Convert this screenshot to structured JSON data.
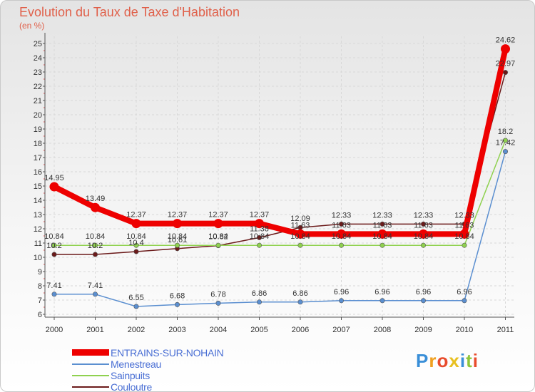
{
  "chart_data": {
    "type": "line",
    "title": "Evolution du Taux de Taxe d'Habitation",
    "ylabel": "(en %)",
    "xlabel": "",
    "ylim": [
      6,
      25
    ],
    "ytick_step": 1,
    "categories": [
      "2000",
      "2001",
      "2002",
      "2003",
      "2004",
      "2005",
      "2006",
      "2007",
      "2008",
      "2009",
      "2010",
      "2011"
    ],
    "series": [
      {
        "name": "Couloutre",
        "color": "#6b1a1a",
        "values": [
          10.2,
          10.2,
          10.4,
          10.61,
          10.82,
          11.38,
          12.09,
          12.33,
          12.33,
          12.33,
          12.33,
          22.97
        ],
        "labels": [
          "10.2",
          "10.2",
          "10.4",
          "10.61",
          "10.82",
          "11.38",
          "12.09",
          "12.33",
          "12.33",
          "12.33",
          "12.33",
          "22.97"
        ]
      },
      {
        "name": "Sainpuits",
        "color": "#8fd14f",
        "values": [
          10.84,
          10.84,
          10.84,
          10.84,
          10.84,
          10.84,
          10.84,
          10.84,
          10.84,
          10.84,
          10.84,
          18.2
        ],
        "labels": [
          "10.84",
          "10.84",
          "10.84",
          "10.84",
          "10.84",
          "10.84",
          "10.84",
          "10.84",
          "10.84",
          "10.84",
          "10.84",
          "18.2"
        ]
      },
      {
        "name": "Menestreau",
        "color": "#5b8fd0",
        "values": [
          7.41,
          7.41,
          6.55,
          6.68,
          6.78,
          6.86,
          6.86,
          6.96,
          6.96,
          6.96,
          6.96,
          17.42
        ],
        "labels": [
          "7.41",
          "7.41",
          "6.55",
          "6.68",
          "6.78",
          "6.86",
          "6.86",
          "6.96",
          "6.96",
          "6.96",
          "6.96",
          "17.42"
        ]
      },
      {
        "name": "ENTRAINS-SUR-NOHAIN",
        "color": "#ee0000",
        "values": [
          14.95,
          13.49,
          12.37,
          12.37,
          12.37,
          12.37,
          11.63,
          11.63,
          11.63,
          11.63,
          11.63,
          24.62
        ],
        "labels": [
          "14.95",
          "13.49",
          "12.37",
          "12.37",
          "12.37",
          "12.37",
          "11.63",
          "11.63",
          "11.63",
          "11.63",
          "11.63",
          "24.62"
        ]
      }
    ],
    "legend": [
      "ENTRAINS-SUR-NOHAIN",
      "Menestreau",
      "Sainpuits",
      "Couloutre"
    ]
  },
  "header": {
    "title": "Evolution du Taux de Taxe d'Habitation",
    "unit": "(en %)"
  },
  "logo": {
    "letters": [
      "P",
      "r",
      "o",
      "x",
      "i",
      "t",
      "i"
    ],
    "colors": [
      "#3a8fd8",
      "#f0a020",
      "#e84b2c",
      "#e8c020",
      "#3a8fd8",
      "#8fc63a",
      "#e84b2c"
    ]
  }
}
